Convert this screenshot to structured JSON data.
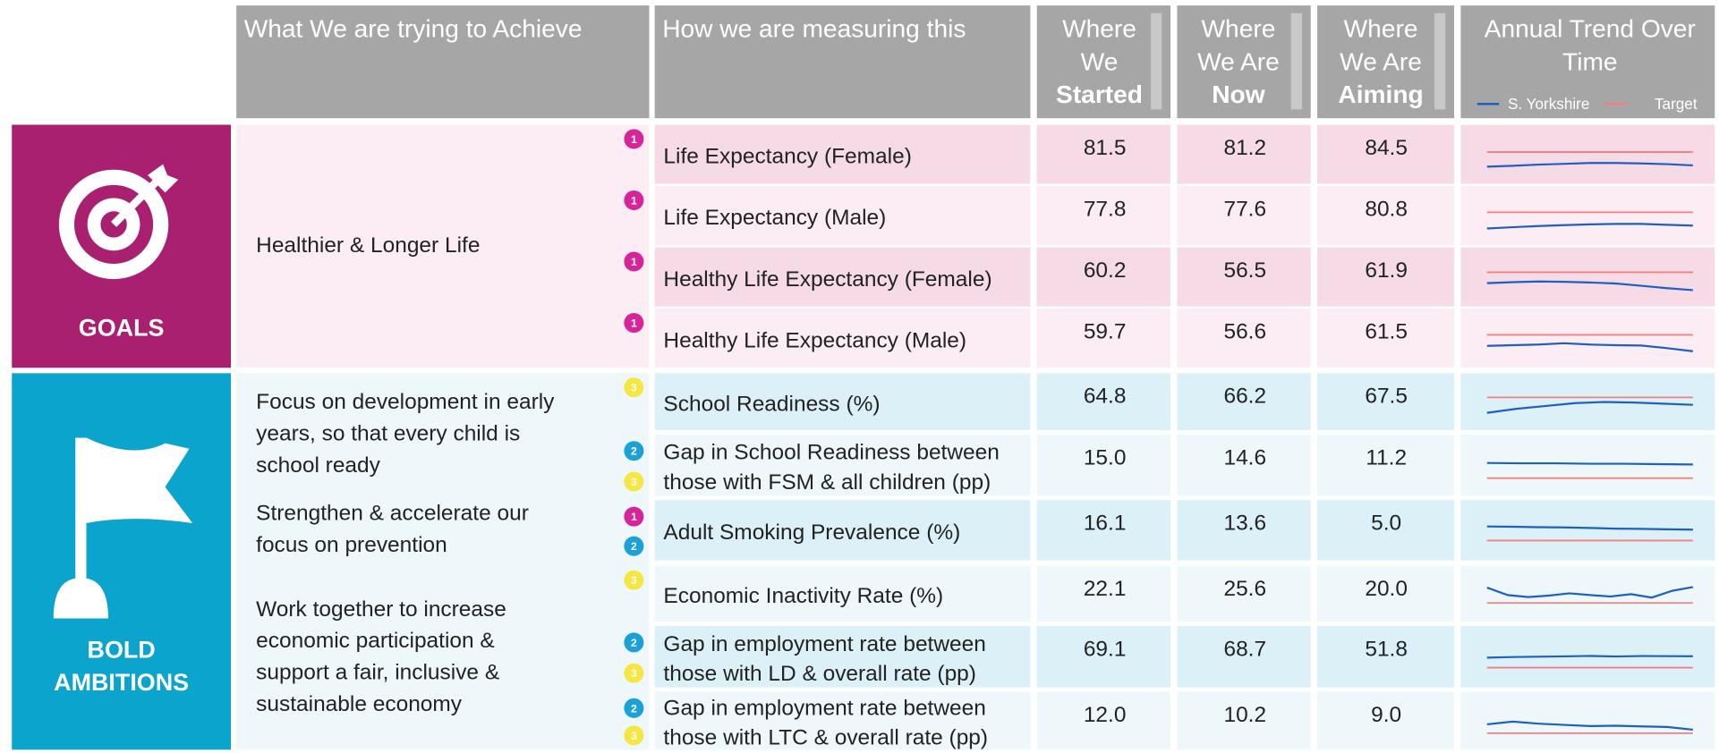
{
  "header": {
    "achieve": "What We are trying to Achieve",
    "measure": "How we are measuring this",
    "started": [
      "Where",
      "We",
      "Started"
    ],
    "now": [
      "Where",
      "We Are",
      "Now"
    ],
    "aiming": [
      "Where",
      "We Are",
      "Aiming"
    ],
    "trend": [
      "Annual Trend Over",
      "Time"
    ]
  },
  "legend": [
    {
      "name": "S. Yorkshire",
      "color": "#1f5fbf"
    },
    {
      "name": "Target",
      "color": "#f08080"
    }
  ],
  "badge_colors": {
    "1": "#d6249a",
    "2": "#1ba0d8",
    "3": "#f5e642"
  },
  "sections": [
    {
      "label": [
        "GOALS"
      ],
      "color": "#a8206f",
      "row_bg": [
        "#f6dbe7",
        "#fbedf3"
      ],
      "aim_bg": "#fbedf3",
      "groups": [
        {
          "aim": [
            "Healthier & Longer Life"
          ],
          "rows": [
            {
              "measure": [
                "Life Expectancy (Female)"
              ],
              "badges": [
                "1"
              ],
              "started": "81.5",
              "now": "81.2",
              "aiming": "84.5",
              "trend": {
                "values": [
                  80.9,
                  81.1,
                  81.4,
                  81.6,
                  81.8,
                  81.8,
                  81.7,
                  81.5,
                  81.2
                ],
                "ylim": [
                  78.8,
                  89.1
                ]
              }
            },
            {
              "measure": [
                "Life Expectancy (Male)"
              ],
              "badges": [
                "1"
              ],
              "started": "77.8",
              "now": "77.6",
              "aiming": "80.8",
              "trend": {
                "values": [
                  76.9,
                  77.2,
                  77.5,
                  77.7,
                  77.9,
                  78.0,
                  78.0,
                  77.8,
                  77.6
                ],
                "ylim": [
                  75.0,
                  85.0
                ]
              }
            },
            {
              "measure": [
                "Healthy Life Expectancy (Female)"
              ],
              "badges": [
                "1"
              ],
              "started": "60.2",
              "now": "56.5",
              "aiming": "61.9",
              "trend": {
                "values": [
                  58.6,
                  58.9,
                  59.1,
                  59.0,
                  58.8,
                  58.5,
                  57.8,
                  57.1,
                  56.5
                ],
                "ylim": [
                  54.2,
                  66.8
                ]
              }
            },
            {
              "measure": [
                "Healthy Life Expectancy (Male)"
              ],
              "badges": [
                "1"
              ],
              "started": "59.7",
              "now": "56.6",
              "aiming": "61.5",
              "trend": {
                "values": [
                  58.2,
                  58.4,
                  58.6,
                  59.0,
                  58.6,
                  58.4,
                  58.3,
                  57.5,
                  56.6
                ],
                "ylim": [
                  54.25,
                  66.75
                ]
              }
            }
          ]
        }
      ]
    },
    {
      "label": [
        "BOLD",
        "AMBITIONS"
      ],
      "color": "#0aa4cc",
      "row_bg": [
        "#dcf0f7",
        "#eef8fb"
      ],
      "aim_bg": "#eef8fb",
      "groups": [
        {
          "aim": [
            "Focus on development in early",
            "years, so that every child is",
            "school ready"
          ],
          "rows": [
            {
              "measure": [
                "School Readiness (%)"
              ],
              "badges": [
                "3"
              ],
              "started": "64.8",
              "now": "66.2",
              "aiming": "67.5",
              "trend": {
                "values": [
                  64.8,
                  65.5,
                  66.0,
                  66.5,
                  66.7,
                  66.6,
                  66.4,
                  66.2
                ],
                "ylim": [
                  63.3,
                  70.2
                ]
              }
            },
            {
              "measure": [
                "Gap in School Readiness between",
                "those with FSM & all children (pp)"
              ],
              "badges": [
                "2",
                "3"
              ],
              "started": "15.0",
              "now": "14.6",
              "aiming": "11.2",
              "trend": {
                "values": [
                  15.0,
                  14.9,
                  14.9,
                  14.8,
                  14.8,
                  14.7,
                  14.6
                ],
                "ylim": [
                  9.0,
                  19.9
                ]
              }
            }
          ]
        },
        {
          "aim": [
            "Strengthen & accelerate our",
            "focus on prevention"
          ],
          "rows": [
            {
              "measure": [
                "Adult Smoking Prevalence (%)"
              ],
              "badges": [
                "1",
                "2"
              ],
              "started": "16.1",
              "now": "13.6",
              "aiming": "5.0",
              "trend": {
                "values": [
                  16.1,
                  15.9,
                  15.5,
                  15.3,
                  14.9,
                  14.4,
                  14.2,
                  13.9,
                  13.6
                ],
                "ylim": [
                  -3.7,
                  29.9
                ]
              }
            }
          ]
        },
        {
          "aim": [
            "Work together to increase",
            "economic participation &",
            "support a fair, inclusive &",
            "sustainable economy"
          ],
          "rows": [
            {
              "measure": [
                "Economic Inactivity Rate (%)"
              ],
              "badges": [
                "3"
              ],
              "started": "22.1",
              "now": "25.6",
              "aiming": "20.0",
              "trend": {
                "values": [
                  25.4,
                  22.8,
                  22.1,
                  22.6,
                  23.4,
                  22.8,
                  22.3,
                  23.1,
                  21.9,
                  24.3,
                  25.6
                ],
                "ylim": [
                  16.5,
                  30.0
                ]
              }
            },
            {
              "measure": [
                "Gap in employment rate between",
                "those with LD & overall rate (pp)"
              ],
              "badges": [
                "2",
                "3"
              ],
              "started": "69.1",
              "now": "68.7",
              "aiming": "51.8",
              "trend": {
                "values": [
                  66.5,
                  67.5,
                  68.0,
                  68.5,
                  69.1,
                  68.3,
                  69.0,
                  68.8,
                  68.7
                ],
                "ylim": [
                  35.6,
                  100.4
                ]
              }
            },
            {
              "measure": [
                "Gap in employment rate between",
                "those with LTC & overall rate (pp)"
              ],
              "badges": [
                "2",
                "3"
              ],
              "started": "12.0",
              "now": "10.2",
              "aiming": "9.0",
              "trend": {
                "values": [
                  12.0,
                  12.9,
                  12.2,
                  11.8,
                  11.4,
                  11.5,
                  11.3,
                  11.1,
                  10.2
                ],
                "ylim": [
                  6.4,
                  20.0
                ]
              }
            }
          ]
        }
      ]
    }
  ]
}
